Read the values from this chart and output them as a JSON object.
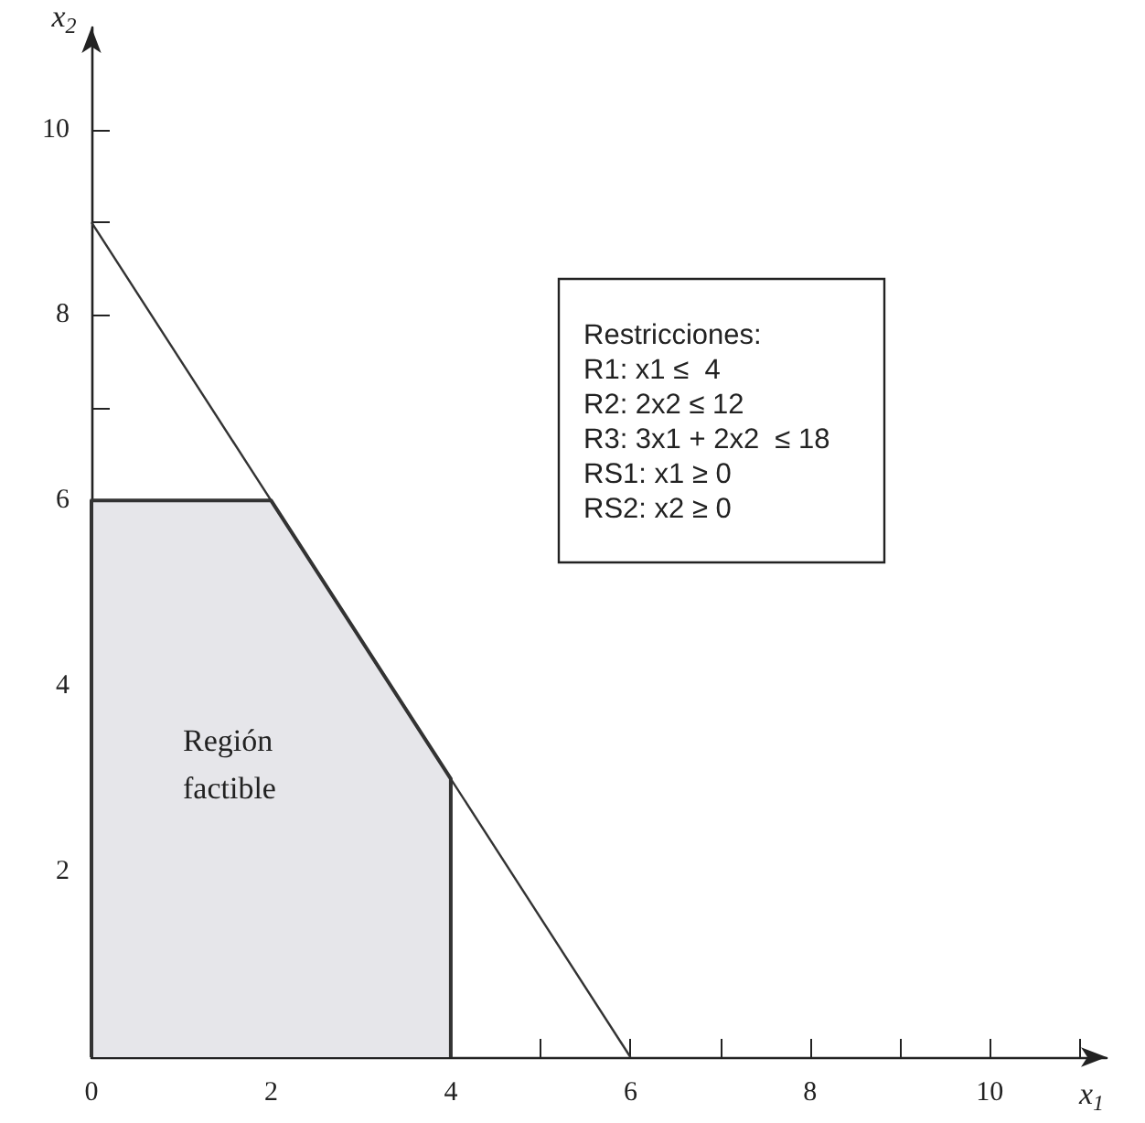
{
  "chart_data": {
    "type": "area",
    "xlabel": "x$_{1}$",
    "ylabel": "x$_{2}$",
    "xlim": [
      0,
      11.3
    ],
    "ylim": [
      0,
      11.1
    ],
    "xticks": [
      0,
      {
        "value": 1,
        "label": null
      },
      2,
      {
        "value": 3,
        "label": null
      },
      4,
      {
        "value": 5,
        "label": null
      },
      6,
      {
        "value": 7,
        "label": null
      },
      8,
      {
        "value": 9,
        "label": null
      },
      10,
      {
        "value": 11,
        "label": null
      }
    ],
    "yticks": [
      {
        "value": 0,
        "label": null
      },
      {
        "value": 1,
        "label": null
      },
      2,
      {
        "value": 3,
        "label": null
      },
      4,
      {
        "value": 5,
        "label": null
      },
      6,
      {
        "value": 7,
        "label": null
      },
      8,
      {
        "value": 9,
        "label": null
      },
      10
    ],
    "series": [
      {
        "color": "#e6e6ea",
        "x": [
          0,
          0,
          2,
          4,
          4
        ],
        "values": [
          0,
          6,
          6,
          3,
          0
        ]
      },
      {
        "type": "line",
        "color": "#333333",
        "x": [
          0,
          6
        ],
        "values": [
          9,
          0
        ]
      }
    ],
    "annotations": [
      "Región\nfactible",
      "Restricciones:",
      "R1: x1 ≤  4",
      "R2: 2x2 ≤ 12",
      "R3: 3x1 + 2x2  ≤ 18",
      "RS1: x1 ≥ 0",
      "RS2: x2 ≥ 0"
    ],
    "grid": false,
    "marker": "none",
    "line_style": "solid"
  }
}
